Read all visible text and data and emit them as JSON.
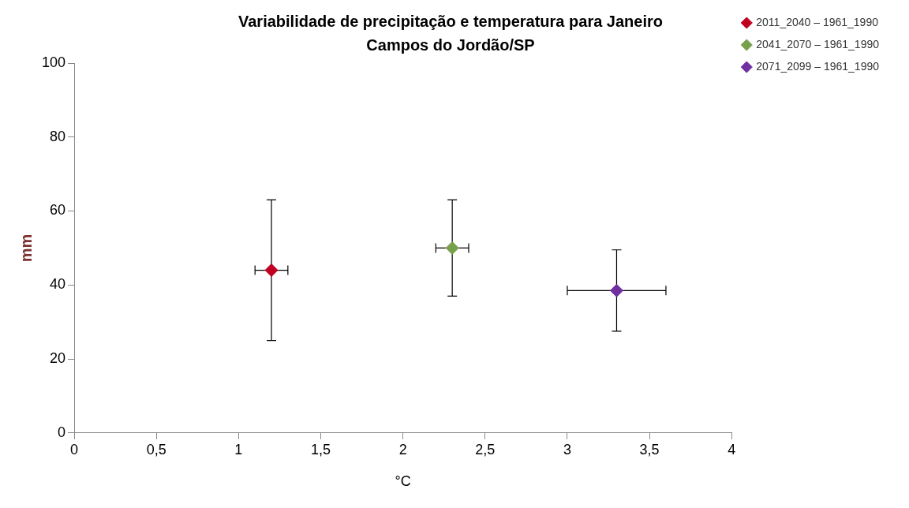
{
  "chart_data": {
    "type": "scatter",
    "title": "Variabilidade de precipitação e temperatura para Janeiro",
    "subtitle": "Campos do Jordão/SP",
    "xlabel": "°C",
    "ylabel": "mm",
    "series": [
      {
        "name": "2011_2040 – 1961_1990",
        "color": "#c00020",
        "x": [
          1.2
        ],
        "values": [
          44
        ],
        "errors": [
          19
        ],
        "xerrors": [
          0.1
        ]
      },
      {
        "name": "2041_2070 – 1961_1990",
        "color": "#77a04b",
        "x": [
          2.3
        ],
        "values": [
          50
        ],
        "errors": [
          13
        ],
        "xerrors": [
          0.1
        ]
      },
      {
        "name": "2071_2099 – 1961_1990",
        "color": "#7030a0",
        "x": [
          3.3
        ],
        "values": [
          38.5
        ],
        "errors": [
          11
        ],
        "xerrors": [
          0.3
        ]
      }
    ],
    "xlim": [
      0,
      4
    ],
    "xticks": [
      0,
      {
        "value": 0.5,
        "label": "0,5"
      },
      1,
      {
        "value": 1.5,
        "label": "1,5"
      },
      2,
      {
        "value": 2.5,
        "label": "2,5"
      },
      3,
      {
        "value": 3.5,
        "label": "3,5"
      },
      4
    ],
    "ylim": [
      0,
      100
    ],
    "yticks": [
      0,
      20,
      40,
      60,
      80,
      100
    ],
    "grid": false,
    "legend": "top right",
    "marker": "diamond"
  }
}
